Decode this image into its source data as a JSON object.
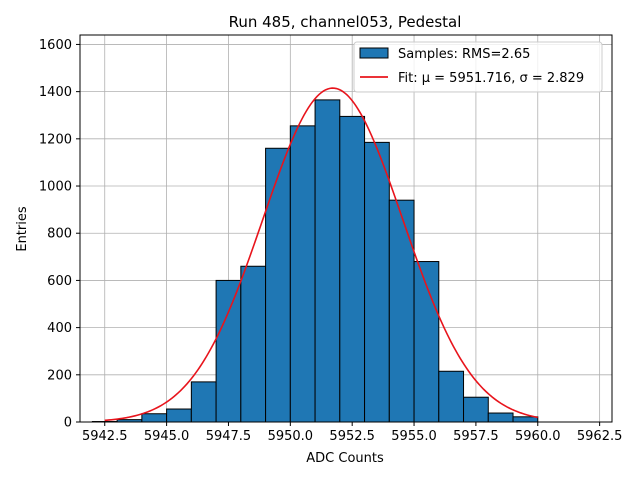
{
  "chart_data": {
    "type": "bar",
    "title": "Run 485, channel053, Pedestal",
    "xlabel": "ADC Counts",
    "ylabel": "Entries",
    "xlim": [
      5941.5,
      5963.0
    ],
    "ylim": [
      0,
      1640
    ],
    "grid": true,
    "legend_position": "top-right",
    "xticks": [
      5942.5,
      5945.0,
      5947.5,
      5950.0,
      5952.5,
      5955.0,
      5957.5,
      5960.0,
      5962.5
    ],
    "xtick_labels": [
      "5942.5",
      "5945.0",
      "5947.5",
      "5950.0",
      "5952.5",
      "5955.0",
      "5957.5",
      "5960.0",
      "5962.5"
    ],
    "yticks": [
      0,
      200,
      400,
      600,
      800,
      1000,
      1200,
      1400,
      1600
    ],
    "ytick_labels": [
      "0",
      "200",
      "400",
      "600",
      "800",
      "1000",
      "1200",
      "1400",
      "1600"
    ],
    "bin_edges": [
      5942.0,
      5943.0,
      5944.0,
      5945.0,
      5946.0,
      5947.0,
      5948.0,
      5949.0,
      5950.0,
      5951.0,
      5952.0,
      5953.0,
      5954.0,
      5955.0,
      5956.0,
      5957.0,
      5958.0,
      5959.0,
      5960.0
    ],
    "values": [
      2,
      10,
      35,
      55,
      170,
      600,
      660,
      1160,
      1255,
      1365,
      1295,
      1185,
      940,
      680,
      215,
      105,
      38,
      22
    ],
    "fit": {
      "mu": 5951.716,
      "sigma": 2.829,
      "amplitude": 1415,
      "x_range": [
        5942.5,
        5960.0
      ]
    },
    "series": [
      {
        "name": "Samples: RMS=2.65",
        "type": "histogram",
        "color": "#1f77b4"
      },
      {
        "name": "Fit: μ = 5951.716, σ = 2.829",
        "type": "line",
        "color": "#e8141c"
      }
    ]
  }
}
